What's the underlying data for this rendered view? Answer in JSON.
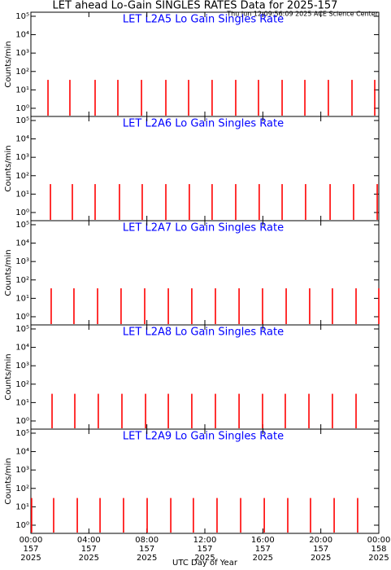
{
  "chart_data": [
    {
      "type": "bar",
      "title": "LET ahead Lo-Gain SINGLES RATES Data for 2025-157",
      "subtitle": "Thu Jun 12 09:56:09 2025 ACE Science Center",
      "panel_title": "LET L2A5 Lo Gain Singles Rate",
      "ylabel": "Counts/min",
      "color": "#ff0000",
      "log_y": true,
      "x": [
        1.18,
        2.69,
        4.43,
        6.0,
        7.63,
        9.31,
        10.88,
        12.5,
        14.13,
        15.7,
        17.33,
        18.9,
        20.52,
        22.15,
        23.72
      ],
      "values": [
        35,
        35,
        35,
        35,
        35,
        35,
        35,
        35,
        35,
        35,
        35,
        35,
        35,
        35,
        35
      ],
      "xlim": [
        0,
        24
      ],
      "xticks": [
        0,
        4,
        8,
        12,
        16,
        20,
        24
      ],
      "ylim": [
        0.36,
        166000
      ],
      "yticks": [
        {
          "value": 1,
          "label": "10⁰"
        },
        {
          "value": 10,
          "label": "10¹"
        },
        {
          "value": 100,
          "label": "10²"
        },
        {
          "value": 1000,
          "label": "10³"
        },
        {
          "value": 10000,
          "label": "10⁴"
        },
        {
          "value": 100000,
          "label": "10⁵"
        }
      ]
    },
    {
      "type": "bar",
      "panel_title": "LET L2A6 Lo Gain Singles Rate",
      "ylabel": "Counts/min",
      "color": "#ff0000",
      "log_y": true,
      "x": [
        1.35,
        2.86,
        4.43,
        6.11,
        7.68,
        9.31,
        10.93,
        12.5,
        14.13,
        15.75,
        17.33,
        18.95,
        20.64,
        22.26,
        23.89
      ],
      "values": [
        35,
        35,
        35,
        35,
        35,
        35,
        35,
        35,
        35,
        35,
        35,
        35,
        35,
        35,
        35
      ],
      "xlim": [
        0,
        24
      ],
      "xticks": [
        0,
        4,
        8,
        12,
        16,
        20,
        24
      ],
      "ylim": [
        0.36,
        166000
      ],
      "yticks": [
        {
          "value": 1,
          "label": "10⁰"
        },
        {
          "value": 10,
          "label": "10¹"
        },
        {
          "value": 100,
          "label": "10²"
        },
        {
          "value": 1000,
          "label": "10³"
        },
        {
          "value": 10000,
          "label": "10⁴"
        },
        {
          "value": 100000,
          "label": "10⁵"
        }
      ]
    },
    {
      "type": "bar",
      "panel_title": "LET L2A7 Lo Gain Singles Rate",
      "ylabel": "Counts/min",
      "color": "#ff0000",
      "log_y": true,
      "x": [
        1.4,
        2.97,
        4.6,
        6.22,
        7.85,
        9.48,
        11.1,
        12.73,
        14.36,
        15.98,
        17.61,
        19.23,
        20.8,
        22.43,
        24
      ],
      "values": [
        35,
        35,
        35,
        35,
        35,
        35,
        35,
        35,
        35,
        35,
        35,
        35,
        35,
        35,
        35
      ],
      "xlim": [
        0,
        24
      ],
      "xticks": [
        0,
        4,
        8,
        12,
        16,
        20,
        24
      ],
      "ylim": [
        0.36,
        166000
      ],
      "yticks": [
        {
          "value": 1,
          "label": "10⁰"
        },
        {
          "value": 10,
          "label": "10¹"
        },
        {
          "value": 100,
          "label": "10²"
        },
        {
          "value": 1000,
          "label": "10³"
        },
        {
          "value": 10000,
          "label": "10⁴"
        },
        {
          "value": 100000,
          "label": "10⁵"
        }
      ]
    },
    {
      "type": "bar",
      "panel_title": "LET L2A8 Lo Gain Singles Rate",
      "ylabel": "Counts/min",
      "color": "#ff0000",
      "log_y": true,
      "x": [
        1.46,
        3.03,
        4.65,
        6.28,
        7.91,
        9.48,
        11.1,
        12.73,
        14.36,
        15.98,
        17.55,
        19.18,
        20.8,
        22.43
      ],
      "values": [
        30,
        30,
        30,
        30,
        30,
        30,
        30,
        30,
        30,
        30,
        30,
        30,
        30,
        30
      ],
      "xlim": [
        0,
        24
      ],
      "xticks": [
        0,
        4,
        8,
        12,
        16,
        20,
        24
      ],
      "ylim": [
        0.36,
        166000
      ],
      "yticks": [
        {
          "value": 1,
          "label": "10⁰"
        },
        {
          "value": 10,
          "label": "10¹"
        },
        {
          "value": 100,
          "label": "10²"
        },
        {
          "value": 1000,
          "label": "10³"
        },
        {
          "value": 10000,
          "label": "10⁴"
        },
        {
          "value": 100000,
          "label": "10⁵"
        }
      ]
    },
    {
      "type": "bar",
      "panel_title": "LET L2A9 Lo Gain Singles Rate",
      "ylabel": "Counts/min",
      "color": "#ff0000",
      "log_y": true,
      "xlabel": "UTC Day of Year",
      "x": [
        0.05,
        1.57,
        3.2,
        4.77,
        6.39,
        8.02,
        9.65,
        11.21,
        12.84,
        14.47,
        16.1,
        17.72,
        19.29,
        20.92,
        22.54
      ],
      "values": [
        30,
        30,
        30,
        30,
        30,
        30,
        30,
        30,
        30,
        30,
        30,
        30,
        30,
        30,
        30
      ],
      "xlim": [
        0,
        24
      ],
      "ylim": [
        0.36,
        166000
      ],
      "xticks": [
        {
          "value": 0,
          "label": [
            "00:00",
            "157",
            "2025"
          ]
        },
        {
          "value": 4,
          "label": [
            "04:00",
            "157",
            "2025"
          ]
        },
        {
          "value": 8,
          "label": [
            "08:00",
            "157",
            "2025"
          ]
        },
        {
          "value": 12,
          "label": [
            "12:00",
            "157",
            "2025"
          ]
        },
        {
          "value": 16,
          "label": [
            "16:00",
            "157",
            "2025"
          ]
        },
        {
          "value": 20,
          "label": [
            "20:00",
            "157",
            "2025"
          ]
        },
        {
          "value": 24,
          "label": [
            "00:00",
            "158",
            "2025"
          ]
        }
      ],
      "yticks": [
        {
          "value": 1,
          "label": "10⁰"
        },
        {
          "value": 10,
          "label": "10¹"
        },
        {
          "value": 100,
          "label": "10²"
        },
        {
          "value": 1000,
          "label": "10³"
        },
        {
          "value": 10000,
          "label": "10⁴"
        },
        {
          "value": 100000,
          "label": "10⁵"
        }
      ]
    }
  ]
}
